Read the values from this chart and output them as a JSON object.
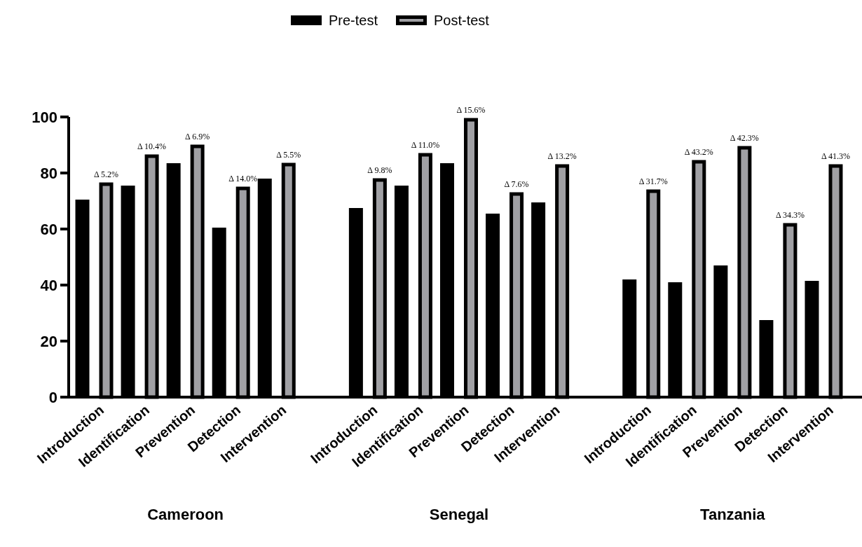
{
  "chart_data": {
    "type": "bar",
    "categories": [
      "Introduction",
      "Identification",
      "Prevention",
      "Detection",
      "Intervention",
      null,
      "Introduction",
      "Identification",
      "Prevention",
      "Detection",
      "Intervention",
      null,
      "Introduction",
      "Identification",
      "Prevention",
      "Detection",
      "Intervention"
    ],
    "series": [
      {
        "name": "Pre-test",
        "color": "#000000",
        "values": [
          70.5,
          75.5,
          83.5,
          60.5,
          78,
          null,
          67.5,
          75.5,
          83.5,
          65.5,
          69.5,
          null,
          42,
          41,
          47,
          27.5,
          41.5
        ]
      },
      {
        "name": "Post-test",
        "color": "#a0a0a4",
        "values": [
          76,
          86,
          89.5,
          74.5,
          83,
          null,
          77.5,
          86.5,
          99,
          72.5,
          82.5,
          null,
          73.5,
          84,
          89,
          61.5,
          82.5
        ],
        "value_labels": [
          "Δ 5.2%",
          "Δ 10.4%",
          "Δ 6.9%",
          "Δ 14.0%",
          "Δ 5.5%",
          null,
          "Δ 9.8%",
          "Δ 11.0%",
          "Δ 15.6%",
          "Δ 7.6%",
          "Δ 13.2%",
          null,
          "Δ 31.7%",
          "Δ 43.2%",
          "Δ 42.3%",
          "Δ 34.3%",
          "Δ 41.3%"
        ]
      }
    ],
    "annotations": [
      "Cameroon",
      "Senegal",
      "Tanzania"
    ],
    "ylim": [
      0,
      100
    ],
    "yticks": [
      0,
      20,
      40,
      60,
      80,
      100
    ],
    "grid": false,
    "legend": "top"
  }
}
